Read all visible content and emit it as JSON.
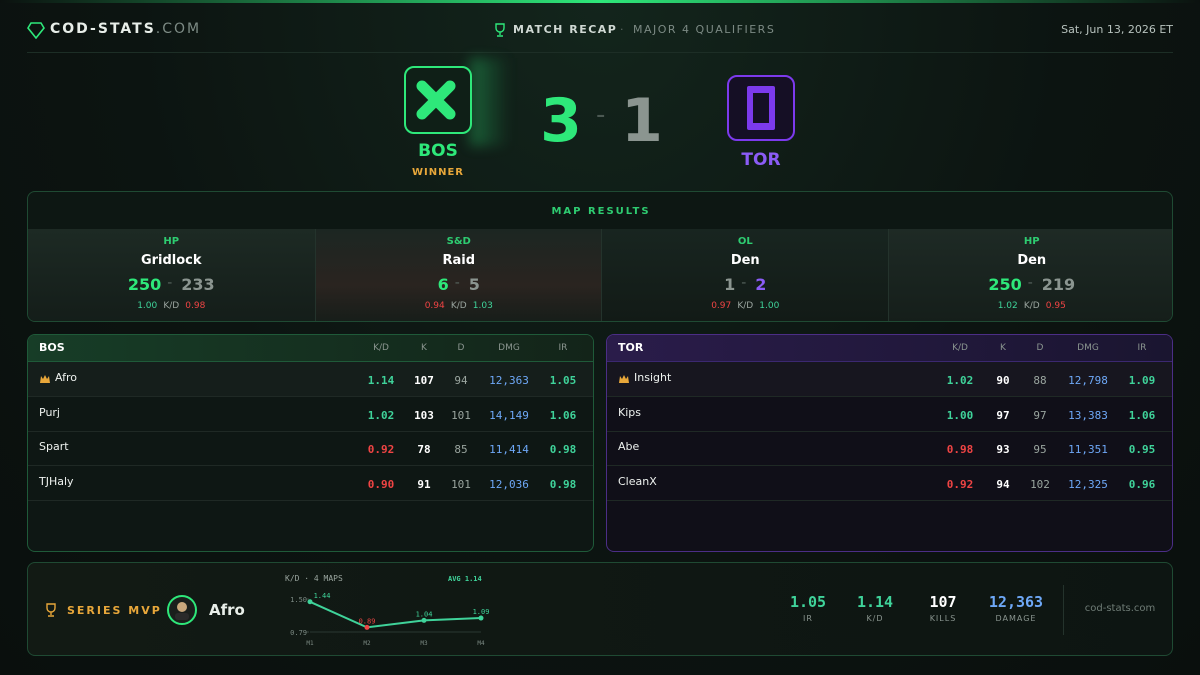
{
  "header": {
    "brand": "COD-STATS",
    "brand_suffix": ".COM",
    "title": "MATCH RECAP",
    "subtitle": "MAJOR 4 QUALIFIERS",
    "date": "Sat, Jun 13, 2026 ET"
  },
  "match": {
    "team1": {
      "name": "BOS",
      "score": "3",
      "badge": "WINNER"
    },
    "team2": {
      "name": "TOR",
      "score": "1"
    }
  },
  "maps": {
    "title": "MAP RESULTS",
    "kd_label": "K/D",
    "items": [
      {
        "mode": "HP",
        "name": "Gridlock",
        "score1": "250",
        "score2": "233",
        "kd1": "1.00",
        "kd2": "0.98"
      },
      {
        "mode": "S&D",
        "name": "Raid",
        "score1": "6",
        "score2": "5",
        "kd1": "0.94",
        "kd2": "1.03"
      },
      {
        "mode": "OL",
        "name": "Den",
        "score1": "1",
        "score2": "2",
        "kd1": "0.97",
        "kd2": "1.00"
      },
      {
        "mode": "HP",
        "name": "Den",
        "score1": "250",
        "score2": "219",
        "kd1": "1.02",
        "kd2": "0.95"
      }
    ]
  },
  "tables": [
    {
      "team": "BOS",
      "columns": [
        "K/D",
        "K",
        "D",
        "DMG",
        "IR"
      ],
      "rows": [
        [
          "Afro",
          "1.14",
          "107",
          "94",
          "12,363",
          "1.05"
        ],
        [
          "Purj",
          "1.02",
          "103",
          "101",
          "14,149",
          "1.06"
        ],
        [
          "Spart",
          "0.92",
          "78",
          "85",
          "11,414",
          "0.98"
        ],
        [
          "TJHaly",
          "0.90",
          "91",
          "101",
          "12,036",
          "0.98"
        ]
      ]
    },
    {
      "team": "TOR",
      "columns": [
        "K/D",
        "K",
        "D",
        "DMG",
        "IR"
      ],
      "rows": [
        [
          "Insight",
          "1.02",
          "90",
          "88",
          "12,798",
          "1.09"
        ],
        [
          "Kips",
          "1.00",
          "97",
          "97",
          "13,383",
          "1.06"
        ],
        [
          "Abe",
          "0.98",
          "93",
          "95",
          "11,351",
          "0.95"
        ],
        [
          "CleanX",
          "0.92",
          "94",
          "102",
          "12,325",
          "0.96"
        ]
      ]
    }
  ],
  "mvp": {
    "label": "SERIES MVP",
    "player": "Afro",
    "chart": {
      "type": "line",
      "title": "K/D · 4 MAPS",
      "avg_label": "AVG 1.14",
      "categories": [
        "M1",
        "M2",
        "M3",
        "M4"
      ],
      "values": [
        1.44,
        0.89,
        1.04,
        1.09
      ],
      "value_labels": [
        "1.44",
        "0.89",
        "1.04",
        "1.09"
      ],
      "ylim": [
        0.79,
        1.5
      ],
      "yticks": [
        {
          "value": 1.5,
          "label": "1.50"
        },
        {
          "value": 0.79,
          "label": "0.79"
        }
      ],
      "color": "#3fd39a"
    },
    "stats": [
      {
        "value": "1.05",
        "label": "IR"
      },
      {
        "value": "1.14",
        "label": "K/D"
      },
      {
        "value": "107",
        "label": "KILLS"
      },
      {
        "value": "12,363",
        "label": "DAMAGE"
      }
    ],
    "footer": "cod-stats.com"
  }
}
